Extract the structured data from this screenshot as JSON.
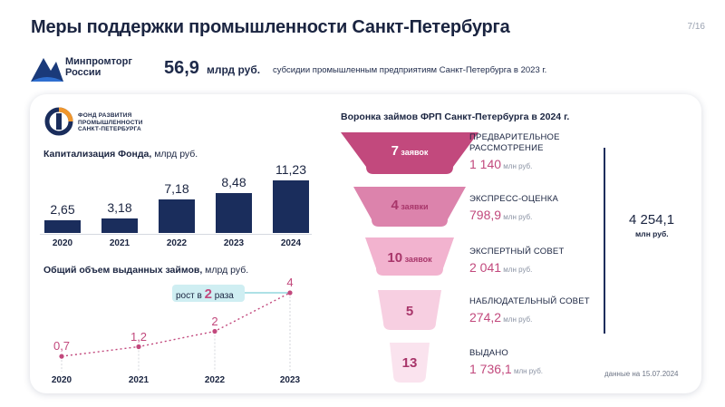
{
  "header": {
    "title": "Меры поддержки промышленности Санкт-Петербурга",
    "page": "7/16"
  },
  "ministry": {
    "name_line1": "Минпромторг",
    "name_line2": "России"
  },
  "headline": {
    "value": "56,9",
    "unit": "млрд руб.",
    "caption": "субсидии промышленным предприятиям Санкт-Петербурга в 2023 г."
  },
  "frp": {
    "name_line1": "ФОНД РАЗВИТИЯ",
    "name_line2": "ПРОМЫШЛЕННОСТИ",
    "name_line3": "САНКТ-ПЕТЕРБУРГА"
  },
  "capitalization": {
    "title": "Капитализация Фонда,",
    "unit": " млрд руб."
  },
  "loans": {
    "title": "Общий объем выданных займов,",
    "unit": " млрд руб.",
    "growth_prefix": "рост в ",
    "growth_factor": "2",
    "growth_suffix": " раза"
  },
  "funnel": {
    "title": "Воронка займов ФРП Санкт-Петербурга в 2024 г.",
    "total_value": "4 254,1",
    "total_unit": "млн руб.",
    "date_note": "данные на 15.07.2024",
    "stages": [
      {
        "count": "7",
        "count_word": " заявок",
        "name_line1": "ПРЕДВАРИТЕЛЬНОЕ",
        "name_line2": "РАССМОТРЕНИЕ",
        "amount": "1 140",
        "amount_unit": " млн руб."
      },
      {
        "count": "4",
        "count_word": " заявки",
        "name_line1": "ЭКСПРЕСС-ОЦЕНКА",
        "amount": "798,9",
        "amount_unit": " млн руб."
      },
      {
        "count": "10",
        "count_word": " заявок",
        "name_line1": "ЭКСПЕРТНЫЙ СОВЕТ",
        "amount": "2 041",
        "amount_unit": " млн руб."
      },
      {
        "count": "5",
        "name_line1": "НАБЛЮДАТЕЛЬНЫЙ СОВЕТ",
        "amount": "274,2",
        "amount_unit": " млн руб."
      },
      {
        "count": "13",
        "name_line1": "ВЫДАНО",
        "amount": "1 736,1",
        "amount_unit": " млн руб."
      }
    ],
    "colors": [
      "#c2497d",
      "#dc83ac",
      "#f2b3cf",
      "#f7cfe1",
      "#fae3ee"
    ]
  },
  "colors": {
    "navy": "#1a2d5c",
    "accent": "#c2497d",
    "badge": "#cfeef2"
  },
  "chart_data": [
    {
      "type": "bar",
      "title": "Капитализация Фонда, млрд руб.",
      "categories": [
        "2020",
        "2021",
        "2022",
        "2023",
        "2024"
      ],
      "values": [
        2.65,
        3.18,
        7.18,
        8.48,
        11.23
      ],
      "labels": [
        "2,65",
        "3,18",
        "7,18",
        "8,48",
        "11,23"
      ],
      "ylim": [
        0,
        11.23
      ],
      "color": "#1a2d5c"
    },
    {
      "type": "line",
      "title": "Общий объем выданных займов, млрд руб.",
      "categories": [
        "2020",
        "2021",
        "2022",
        "2023"
      ],
      "values": [
        0.7,
        1.2,
        2,
        4
      ],
      "labels": [
        "0,7",
        "1,2",
        "2",
        "4"
      ],
      "ylim": [
        0,
        4
      ],
      "color": "#c2497d"
    }
  ]
}
